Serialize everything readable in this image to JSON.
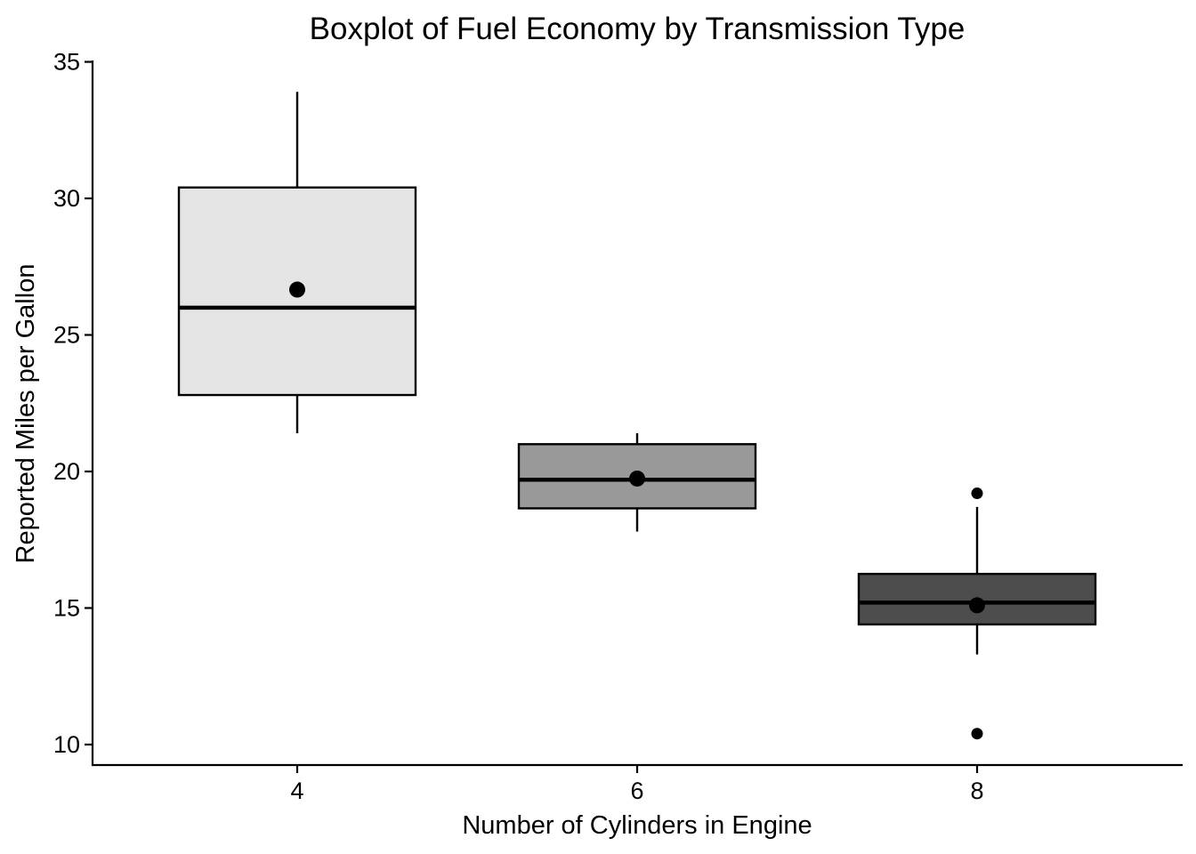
{
  "chart_data": {
    "type": "boxplot",
    "title": "Boxplot of Fuel Economy by Transmission Type",
    "xlabel": "Number of Cylinders in Engine",
    "ylabel": "Reported Miles per Gallon",
    "categories": [
      "4",
      "6",
      "8"
    ],
    "ylim": [
      9.25,
      35.05
    ],
    "y_ticks": [
      10,
      15,
      20,
      25,
      30,
      35
    ],
    "grid": false,
    "legend": "none",
    "boxes": [
      {
        "category": "4",
        "whisker_low": 21.4,
        "q1": 22.8,
        "median": 26.0,
        "q3": 30.4,
        "whisker_high": 33.9,
        "mean": 26.66,
        "outliers": [],
        "fill": "#e5e5e5"
      },
      {
        "category": "6",
        "whisker_low": 17.8,
        "q1": 18.65,
        "median": 19.7,
        "q3": 21.0,
        "whisker_high": 21.4,
        "mean": 19.74,
        "outliers": [],
        "fill": "#999999"
      },
      {
        "category": "8",
        "whisker_low": 13.3,
        "q1": 14.4,
        "median": 15.2,
        "q3": 16.25,
        "whisker_high": 18.7,
        "mean": 15.1,
        "outliers": [
          19.2,
          10.4
        ],
        "fill": "#4d4d4d"
      }
    ]
  }
}
